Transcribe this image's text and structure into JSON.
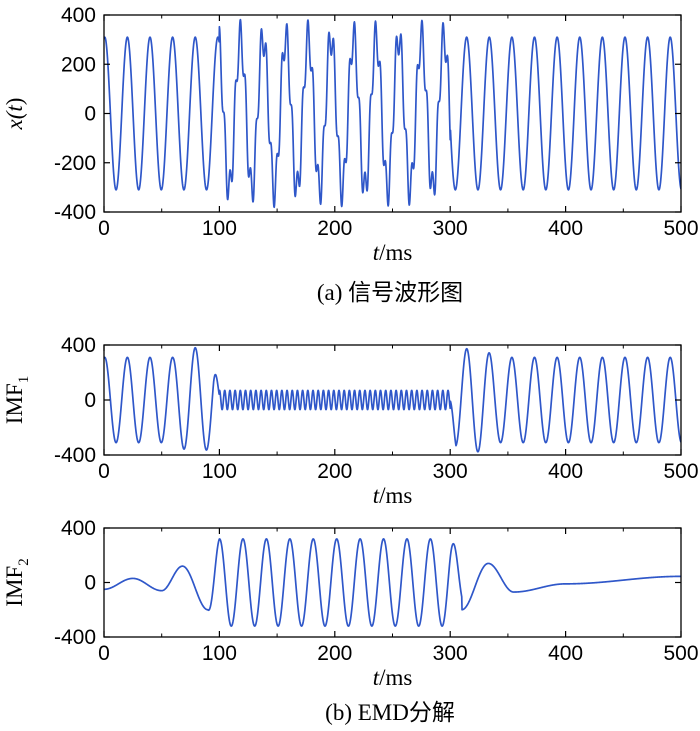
{
  "chart_data": [
    {
      "type": "line",
      "xlabel": "t/ms",
      "xlabel_italic": "t",
      "xlabel_rest": "/ms",
      "ylabel": "x(t)",
      "ylabel_parts": {
        "a": "x(",
        "b": "t",
        "c": ")"
      },
      "xlim": [
        0,
        500
      ],
      "ylim": [
        -400,
        400
      ],
      "xticks": [
        0,
        100,
        200,
        300,
        400,
        500
      ],
      "yticks": [
        400,
        200,
        0,
        -200,
        -400
      ],
      "caption": "(a) 信号波形图",
      "color": "#2f57c9",
      "series": [
        {
          "description": "~310 amplitude sinusoid (period ~19.6 ms) with ~70 amplitude high-frequency burst between 100 and 300 ms",
          "components": [
            {
              "amplitude": 310,
              "period_ms": 19.6,
              "start": 0,
              "end": 500
            },
            {
              "amplitude": 70,
              "period_ms": 4.5,
              "start": 100,
              "end": 300
            }
          ]
        }
      ]
    },
    {
      "type": "line",
      "xlabel": "t/ms",
      "xlabel_italic": "t",
      "xlabel_rest": "/ms",
      "ylabel": "IMF1",
      "ylabel_main": "IMF",
      "ylabel_sub": "1",
      "xlim": [
        0,
        500
      ],
      "ylim": [
        -400,
        400
      ],
      "xticks": [
        0,
        100,
        200,
        300,
        400,
        500
      ],
      "yticks": [
        400,
        0,
        -400
      ],
      "color": "#2f57c9",
      "series": [
        {
          "description": "sinusoid ~310 amplitude outside 100-300 ms, ~70 amplitude high-frequency oscillation inside"
        }
      ]
    },
    {
      "type": "line",
      "xlabel": "t/ms",
      "xlabel_italic": "t",
      "xlabel_rest": "/ms",
      "ylabel": "IMF2",
      "ylabel_main": "IMF",
      "ylabel_sub": "2",
      "xlim": [
        0,
        500
      ],
      "ylim": [
        -400,
        400
      ],
      "xticks": [
        0,
        100,
        200,
        300,
        400,
        500
      ],
      "yticks": [
        400,
        0,
        -400
      ],
      "caption": "(b) EMD分解",
      "color": "#2f57c9",
      "series": [
        {
          "description": "~320 amplitude sinusoid between 100 and 300 ms, small slow drift outside",
          "points_outside": [
            [
              0,
              -50
            ],
            [
              25,
              30
            ],
            [
              50,
              -60
            ],
            [
              68,
              120
            ],
            [
              90,
              -200
            ],
            [
              310,
              -200
            ],
            [
              333,
              140
            ],
            [
              355,
              -70
            ],
            [
              400,
              -10
            ],
            [
              500,
              45
            ]
          ]
        }
      ]
    }
  ]
}
